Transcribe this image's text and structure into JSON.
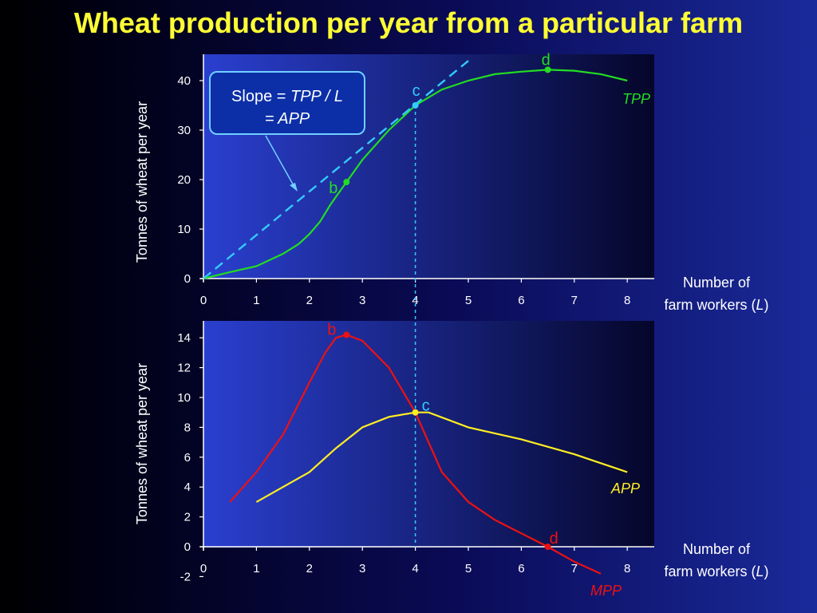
{
  "title": "Wheat production per year from a particular farm",
  "colors": {
    "tpp": "#22dd22",
    "app": "#ffee22",
    "mpp": "#ee1111",
    "tangent": "#33ccff",
    "title": "#ffff33"
  },
  "slope_box": {
    "prefix": "Slope = ",
    "tpp": "TPP",
    "sep": " / ",
    "l": "L",
    "eq": "= ",
    "app": "APP"
  },
  "chart_data": [
    {
      "type": "line",
      "ylabel": "Tonnes of wheat  per year",
      "xlabel_line1": "Number of",
      "xlabel_line2_prefix": "farm workers (",
      "xlabel_line2_var": "L",
      "xlabel_line2_suffix": ")",
      "xlim": [
        0,
        8.5
      ],
      "ylim": [
        0,
        44
      ],
      "xticks": [
        "0",
        "1",
        "2",
        "3",
        "4",
        "5",
        "6",
        "7",
        "8"
      ],
      "yticks": [
        "0",
        "10",
        "20",
        "30",
        "40"
      ],
      "series": [
        {
          "name": "TPP",
          "x": [
            0,
            0.5,
            1,
            1.5,
            1.8,
            2,
            2.2,
            2.4,
            2.6,
            2.7,
            3,
            3.5,
            4,
            4.5,
            5,
            5.5,
            6,
            6.5,
            7,
            7.5,
            8
          ],
          "y": [
            0,
            1.3,
            2.5,
            5,
            7,
            9,
            11.5,
            15,
            18,
            19.5,
            24,
            30,
            35,
            38.2,
            40,
            41.3,
            41.8,
            42.2,
            42,
            41.3,
            40
          ]
        },
        {
          "name": "tangent",
          "x": [
            0,
            5
          ],
          "y": [
            0,
            44
          ]
        }
      ],
      "points": [
        {
          "label": "b",
          "x": 2.7,
          "y": 19.5
        },
        {
          "label": "c",
          "x": 4,
          "y": 35
        },
        {
          "label": "d",
          "x": 6.5,
          "y": 42.2
        }
      ]
    },
    {
      "type": "line",
      "ylabel": "Tonnes of wheat  per year",
      "xlabel_line1": "Number of",
      "xlabel_line2_prefix": "farm workers (",
      "xlabel_line2_var": "L",
      "xlabel_line2_suffix": ")",
      "xlim": [
        0,
        8.5
      ],
      "ylim": [
        -2,
        15
      ],
      "xticks": [
        "0",
        "1",
        "2",
        "3",
        "4",
        "5",
        "6",
        "7",
        "8"
      ],
      "yticks": [
        "-2",
        "0",
        "2",
        "4",
        "6",
        "8",
        "10",
        "12",
        "14"
      ],
      "series": [
        {
          "name": "APP",
          "x": [
            1,
            1.5,
            2,
            2.5,
            3,
            3.5,
            4,
            4.25,
            5,
            6,
            7,
            8
          ],
          "y": [
            3,
            4,
            5,
            6.6,
            8,
            8.7,
            9,
            9,
            8,
            7.2,
            6.2,
            5
          ]
        },
        {
          "name": "MPP",
          "x": [
            0.5,
            1,
            1.5,
            2,
            2.3,
            2.5,
            2.7,
            3,
            3.5,
            4,
            4.5,
            5,
            5.5,
            6,
            6.5,
            7,
            7.5
          ],
          "y": [
            3,
            5,
            7.5,
            11,
            13,
            14,
            14.2,
            13.8,
            12,
            9,
            5,
            3,
            1.8,
            0.9,
            0,
            -1,
            -1.8
          ]
        }
      ],
      "points": [
        {
          "label": "b",
          "x": 2.7,
          "y": 14.2
        },
        {
          "label": "c",
          "x": 4,
          "y": 9
        },
        {
          "label": "d",
          "x": 6.5,
          "y": 0
        }
      ]
    }
  ]
}
